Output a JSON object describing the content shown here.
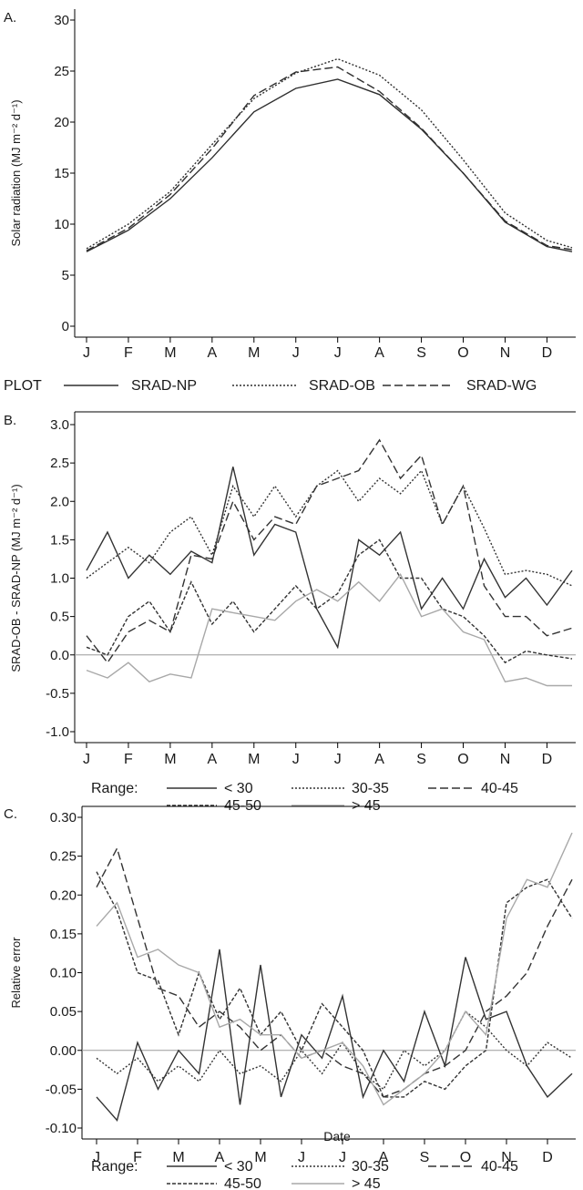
{
  "months": [
    "J",
    "F",
    "M",
    "A",
    "M",
    "J",
    "J",
    "A",
    "S",
    "O",
    "N",
    "D"
  ],
  "xlabel_c": "Date",
  "chart_data": [
    {
      "panel": "A.",
      "type": "line",
      "ylabel": "Solar radiation (MJ m⁻² d⁻¹)",
      "ylim": [
        0,
        30
      ],
      "yticks": [
        "0",
        "5",
        "10",
        "15",
        "20",
        "25",
        "30"
      ],
      "legend_title": "PLOT",
      "x": [
        1,
        2,
        3,
        4,
        5,
        6,
        7,
        8,
        9,
        10,
        11,
        12,
        12.6
      ],
      "series": [
        {
          "name": "SRAD-NP",
          "style": "solid",
          "color": "#2f2f2f",
          "values": [
            7.3,
            9.4,
            12.5,
            16.5,
            21.0,
            23.3,
            24.2,
            22.7,
            19.3,
            15.0,
            10.2,
            7.8,
            7.3
          ]
        },
        {
          "name": "SRAD-OB",
          "style": "dotted",
          "color": "#2f2f2f",
          "values": [
            7.6,
            10.0,
            13.2,
            17.8,
            22.3,
            24.8,
            26.2,
            24.6,
            21.2,
            16.3,
            11.1,
            8.4,
            7.7
          ]
        },
        {
          "name": "SRAD-WG",
          "style": "dashed",
          "color": "#2f2f2f",
          "values": [
            7.4,
            9.6,
            12.9,
            17.4,
            22.6,
            24.9,
            25.4,
            23.0,
            19.4,
            15.0,
            10.3,
            7.9,
            7.5
          ]
        }
      ]
    },
    {
      "panel": "B.",
      "type": "line",
      "ylabel": "SRAD-OB - SRAD-NP (MJ m⁻² d⁻¹)",
      "ylim": [
        -1.0,
        3.0
      ],
      "yticks": [
        "-1.0",
        "-0.5",
        "0.0",
        "0.5",
        "1.0",
        "1.5",
        "2.0",
        "2.5",
        "3.0"
      ],
      "legend_title": "Range:",
      "x": [
        1,
        1.5,
        2,
        2.5,
        3,
        3.5,
        4,
        4.5,
        5,
        5.5,
        6,
        6.5,
        7,
        7.5,
        8,
        8.5,
        9,
        9.5,
        10,
        10.5,
        11,
        11.5,
        12,
        12.6
      ],
      "series": [
        {
          "name": "< 30",
          "style": "solid",
          "color": "#333333",
          "values": [
            1.1,
            1.6,
            1.0,
            1.3,
            1.05,
            1.35,
            1.2,
            2.45,
            1.3,
            1.7,
            1.6,
            0.6,
            0.1,
            1.5,
            1.3,
            1.6,
            0.6,
            1.0,
            0.6,
            1.25,
            0.75,
            1.0,
            0.65,
            1.1
          ]
        },
        {
          "name": "30-35",
          "style": "dotted",
          "color": "#333333",
          "values": [
            1.0,
            1.2,
            1.4,
            1.2,
            1.6,
            1.8,
            1.3,
            2.2,
            1.8,
            2.2,
            1.8,
            2.2,
            2.4,
            2.0,
            2.3,
            2.1,
            2.4,
            1.7,
            2.2,
            1.65,
            1.05,
            1.1,
            1.05,
            0.9
          ]
        },
        {
          "name": "40-45",
          "style": "dashed",
          "color": "#333333",
          "values": [
            0.25,
            -0.1,
            0.3,
            0.45,
            0.3,
            1.3,
            1.25,
            2.0,
            1.5,
            1.8,
            1.7,
            2.2,
            2.3,
            2.4,
            2.8,
            2.3,
            2.6,
            1.7,
            2.2,
            0.9,
            0.5,
            0.5,
            0.25,
            0.35
          ]
        },
        {
          "name": "45-50",
          "style": "dotted2",
          "color": "#333333",
          "values": [
            0.1,
            0.0,
            0.5,
            0.7,
            0.3,
            0.95,
            0.4,
            0.7,
            0.3,
            0.6,
            0.9,
            0.6,
            0.8,
            1.3,
            1.5,
            1.0,
            1.0,
            0.6,
            0.5,
            0.25,
            -0.1,
            0.05,
            0.0,
            -0.05
          ]
        },
        {
          "name": "> 45",
          "style": "solid",
          "color": "#a8a8a8",
          "values": [
            -0.2,
            -0.3,
            -0.1,
            -0.35,
            -0.25,
            -0.3,
            0.6,
            0.55,
            0.5,
            0.45,
            0.7,
            0.85,
            0.7,
            0.95,
            0.7,
            1.05,
            0.5,
            0.6,
            0.3,
            0.2,
            -0.35,
            -0.3,
            -0.4,
            -0.4
          ]
        }
      ]
    },
    {
      "panel": "C.",
      "type": "line",
      "ylabel": "Relative error",
      "xlabel": "Date",
      "ylim": [
        -0.1,
        0.3
      ],
      "yticks": [
        "-0.10",
        "-0.05",
        "0.00",
        "0.05",
        "0.10",
        "0.15",
        "0.20",
        "0.25",
        "0.30"
      ],
      "legend_title": "Range:",
      "x": [
        1,
        1.5,
        2,
        2.5,
        3,
        3.5,
        4,
        4.5,
        5,
        5.5,
        6,
        6.5,
        7,
        7.5,
        8,
        8.5,
        9,
        9.5,
        10,
        10.5,
        11,
        11.5,
        12,
        12.6
      ],
      "series": [
        {
          "name": "< 30",
          "style": "solid",
          "color": "#333333",
          "values": [
            -0.06,
            -0.09,
            0.01,
            -0.05,
            0.0,
            -0.03,
            0.13,
            -0.07,
            0.11,
            -0.06,
            0.02,
            -0.01,
            0.07,
            -0.06,
            0.0,
            -0.04,
            0.05,
            -0.02,
            0.12,
            0.04,
            0.05,
            -0.02,
            -0.06,
            -0.03
          ]
        },
        {
          "name": "30-35",
          "style": "dotted",
          "color": "#333333",
          "values": [
            -0.01,
            -0.03,
            -0.01,
            -0.04,
            -0.02,
            -0.04,
            0.0,
            -0.03,
            -0.02,
            -0.04,
            0.0,
            -0.03,
            0.01,
            -0.03,
            -0.05,
            0.0,
            -0.02,
            0.0,
            0.05,
            0.03,
            0.0,
            -0.02,
            0.01,
            -0.01
          ]
        },
        {
          "name": "40-45",
          "style": "dashed",
          "color": "#333333",
          "values": [
            0.21,
            0.26,
            0.17,
            0.08,
            0.07,
            0.03,
            0.05,
            0.03,
            0.0,
            0.02,
            -0.01,
            0.0,
            -0.02,
            -0.03,
            -0.06,
            -0.05,
            -0.03,
            -0.02,
            0.0,
            0.05,
            0.07,
            0.1,
            0.16,
            0.22
          ]
        },
        {
          "name": "45-50",
          "style": "dotted2",
          "color": "#333333",
          "values": [
            0.23,
            0.18,
            0.1,
            0.09,
            0.02,
            0.1,
            0.04,
            0.08,
            0.02,
            0.05,
            0.0,
            0.06,
            0.03,
            0.0,
            -0.06,
            -0.06,
            -0.04,
            -0.05,
            -0.02,
            0.0,
            0.19,
            0.21,
            0.22,
            0.17
          ]
        },
        {
          "name": "> 45",
          "style": "solid",
          "color": "#a8a8a8",
          "values": [
            0.16,
            0.19,
            0.12,
            0.13,
            0.11,
            0.1,
            0.03,
            0.04,
            0.02,
            0.02,
            -0.01,
            0.0,
            0.01,
            -0.02,
            -0.07,
            -0.05,
            -0.03,
            0.0,
            0.05,
            0.02,
            0.17,
            0.22,
            0.21,
            0.28
          ]
        }
      ]
    }
  ]
}
